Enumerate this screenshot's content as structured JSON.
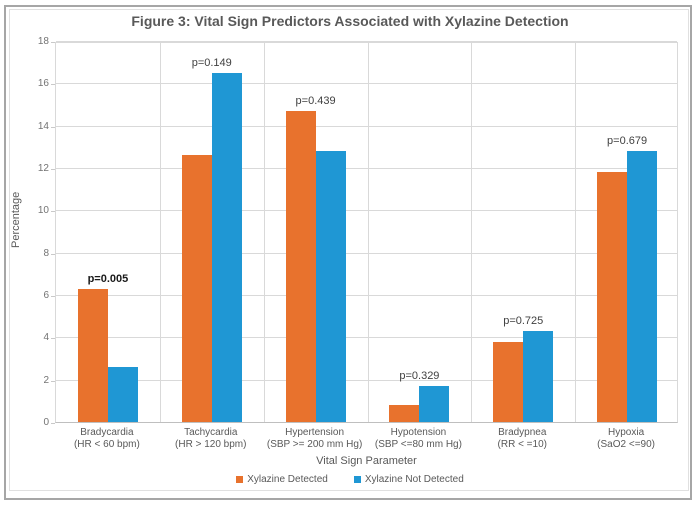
{
  "chart_data": {
    "type": "bar",
    "title": "Figure 3: Vital Sign Predictors Associated with Xylazine Detection",
    "xlabel": "Vital Sign Parameter",
    "ylabel": "Percentage",
    "ylim": [
      0,
      18
    ],
    "ytick_step": 2,
    "grid": "horizontal",
    "legend_position": "bottom",
    "categories": [
      {
        "name": "Bradycardia",
        "criteria": "(HR < 60 bpm)"
      },
      {
        "name": "Tachycardia",
        "criteria": "(HR > 120 bpm)"
      },
      {
        "name": "Hypertension",
        "criteria": "(SBP >= 200 mm Hg)"
      },
      {
        "name": "Hypotension",
        "criteria": "(SBP <=80 mm Hg)"
      },
      {
        "name": "Bradypnea",
        "criteria": "(RR < =10)"
      },
      {
        "name": "Hypoxia",
        "criteria": "(SaO2 <=90)"
      }
    ],
    "series": [
      {
        "name": "Xylazine Detected",
        "color": "#e8722d",
        "values": [
          6.3,
          12.6,
          14.7,
          0.8,
          3.8,
          11.8
        ]
      },
      {
        "name": "Xylazine Not Detected",
        "color": "#1f97d4",
        "values": [
          2.6,
          16.5,
          12.8,
          1.7,
          4.3,
          12.8
        ]
      }
    ],
    "p_values": [
      {
        "label": "p=0.005",
        "bold": true
      },
      {
        "label": "p=0.149",
        "bold": false
      },
      {
        "label": "p=0.439",
        "bold": false
      },
      {
        "label": "p=0.329",
        "bold": false
      },
      {
        "label": "p=0.725",
        "bold": false
      },
      {
        "label": "p=0.679",
        "bold": false
      }
    ],
    "colors": {
      "gridline": "#d9d9d9",
      "axis_text": "#737373",
      "label_text": "#595959",
      "title_text": "#595959"
    }
  }
}
